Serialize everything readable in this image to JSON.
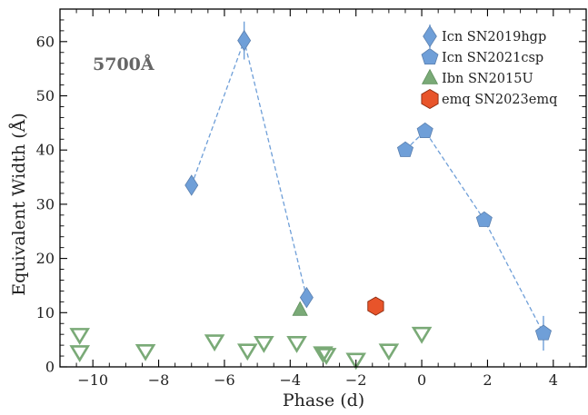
{
  "chart_data": {
    "type": "scatter",
    "xlabel": "Phase (d)",
    "ylabel": "Equivalent Width (Å)",
    "xlim": [
      -11,
      5
    ],
    "ylim": [
      0,
      66
    ],
    "x_ticks": [
      -10,
      -8,
      -6,
      -4,
      -2,
      0,
      2,
      4
    ],
    "y_ticks": [
      0,
      10,
      20,
      30,
      40,
      50,
      60
    ],
    "annotation": "5700Å",
    "legend_position": "top-right",
    "series": [
      {
        "name": "Icn SN2019hgp",
        "marker": "thin_diamond",
        "color": "#6f9fd8",
        "connected": true,
        "line_style": "dashed",
        "points": [
          {
            "x": -7.0,
            "y": 33.5,
            "yerr": 1.5
          },
          {
            "x": -5.4,
            "y": 60.2,
            "yerr": 3.5
          },
          {
            "x": -3.5,
            "y": 12.8,
            "yerr": 1.2
          }
        ]
      },
      {
        "name": "Icn SN2021csp",
        "marker": "pentagon",
        "color": "#6f9fd8",
        "connected": true,
        "line_style": "dashed",
        "points": [
          {
            "x": -0.5,
            "y": 40.0,
            "yerr": 0.8
          },
          {
            "x": 0.1,
            "y": 43.5,
            "yerr": 0.8
          },
          {
            "x": 1.9,
            "y": 27.1,
            "yerr": 0.8
          },
          {
            "x": 3.7,
            "y": 6.2,
            "yerr": 3.2
          }
        ]
      },
      {
        "name": "Ibn SN2015U",
        "marker": "triangle_up",
        "color": "#7aaa77",
        "connected": false,
        "points": [
          {
            "x": -3.7,
            "y": 10.5
          }
        ]
      },
      {
        "name": "emq SN2023emq",
        "marker": "hexagon",
        "color": "#e8542a",
        "connected": false,
        "points": [
          {
            "x": -1.4,
            "y": 11.2
          }
        ]
      },
      {
        "name": "",
        "marker": "triangle_down_open",
        "color": "#7aaa77",
        "connected": false,
        "points": [
          {
            "x": -10.4,
            "y": 5.8
          },
          {
            "x": -10.4,
            "y": 2.6
          },
          {
            "x": -8.4,
            "y": 2.8
          },
          {
            "x": -6.3,
            "y": 4.6
          },
          {
            "x": -5.3,
            "y": 2.9
          },
          {
            "x": -4.8,
            "y": 4.3
          },
          {
            "x": -3.8,
            "y": 4.3
          },
          {
            "x": -3.0,
            "y": 2.4
          },
          {
            "x": -2.9,
            "y": 2.1
          },
          {
            "x": -2.0,
            "y": 1.2
          },
          {
            "x": -1.0,
            "y": 2.9
          },
          {
            "x": 0.0,
            "y": 6.0
          }
        ]
      }
    ]
  }
}
